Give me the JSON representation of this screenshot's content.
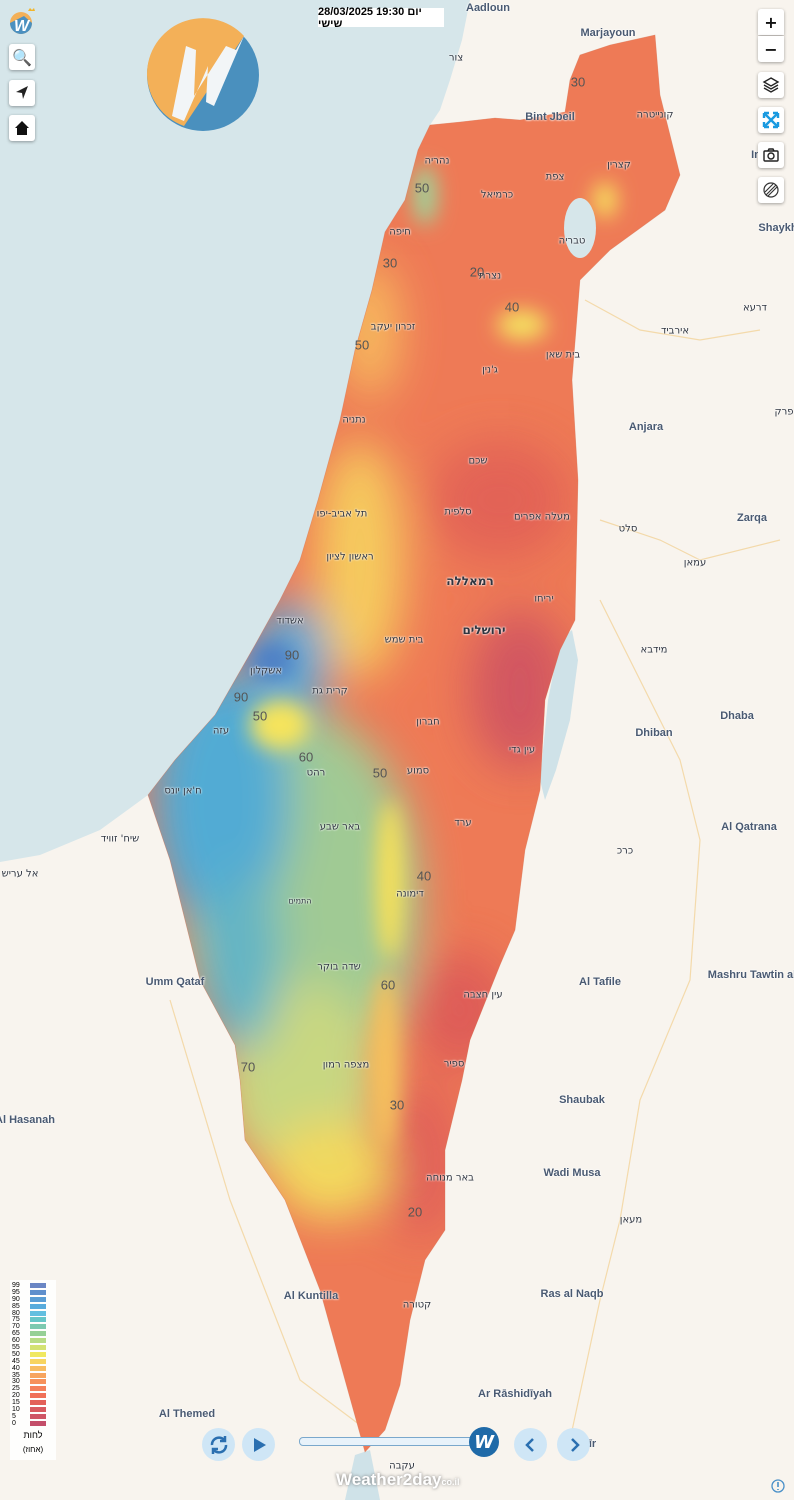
{
  "header": {
    "datetime": "28/03/2025 19:30 יום שישי"
  },
  "controls": {
    "zoom_in": "+",
    "zoom_out": "−",
    "icons": [
      "search-icon",
      "locate-arrow-icon",
      "home-icon",
      "layers-icon",
      "fullscreen-icon",
      "camera-icon",
      "radar-icon",
      "info-icon"
    ]
  },
  "overlay": {
    "variable": "relative-humidity",
    "colors": {
      "low": "#c8525e",
      "mid_low": "#ef7656",
      "mid": "#f6e05a",
      "mid_high": "#8fd0a0",
      "high": "#3fa8d8"
    }
  },
  "labels": [
    "נהריה",
    "כרמיאל",
    "צפת",
    "קצרין",
    "חיפה",
    "טבריה",
    "נצרת",
    "זכרון יעקב",
    "בית שאן",
    "ג'נין",
    "נתניה",
    "שכם",
    "תל אביב-יפו",
    "סלפית",
    "מעלה אפרים",
    "ראשון לציון",
    "רמאללה",
    "יריחו",
    "אשדוד",
    "בית שמש",
    "ירושלים",
    "אשקלון",
    "קרית גת",
    "עזה",
    "חברון",
    "עין גדי",
    "רהט",
    "סמוע",
    "ח'אן יונס",
    "באר שבע",
    "ערד",
    "שיח' זוויד",
    "אל עריש",
    "דימונה",
    "התמים",
    "שדה בוקר",
    "עין חצבה",
    "מצפה רמון",
    "ספיר",
    "באר מנוחה",
    "קטורה",
    "עקבה",
    "צור",
    "קונייטרה",
    "אירביד",
    "דרעא",
    "פרק",
    "סלט",
    "עמאן",
    "מידבא",
    "כרכ",
    "מעאן",
    "Aadloun",
    "Marjayoun",
    "Bint Jbeil",
    "In",
    "Shaykh",
    "Anjara",
    "Zarqa",
    "Dhaba",
    "Dhiban",
    "Al Qatrana",
    "Mashru Tawtin al",
    "Al Tafile",
    "Umm Qataf",
    "Al Hasanah",
    "Shaubak",
    "Wadi Musa",
    "Al Kuntilla",
    "Ras al Naqb",
    "Ar Rāshidīyah",
    "Al Themed",
    "ayshīr"
  ],
  "contours": [
    "30",
    "50",
    "30",
    "20",
    "40",
    "50",
    "90",
    "90",
    "50",
    "60",
    "50",
    "40",
    "60",
    "70",
    "30",
    "20"
  ],
  "legend": {
    "title": "לחות",
    "unit": "(אחוז)",
    "values": [
      "99",
      "95",
      "90",
      "85",
      "80",
      "75",
      "70",
      "65",
      "60",
      "55",
      "50",
      "45",
      "40",
      "35",
      "30",
      "25",
      "20",
      "15",
      "10",
      "5",
      "0"
    ],
    "colors": [
      "#6a86c4",
      "#5f8fcc",
      "#5a9dd4",
      "#58abdc",
      "#62bfe0",
      "#66c6c8",
      "#7cc9b0",
      "#96d096",
      "#b8dc86",
      "#d4e272",
      "#f0e860",
      "#f7d460",
      "#f8bc62",
      "#f7a45e",
      "#f6915a",
      "#f4805a",
      "#f07058",
      "#e36058",
      "#d85a60",
      "#cf5566",
      "#c44e6a"
    ]
  },
  "playback": {
    "brand": "Weather2day",
    "brand_suffix": "co.il"
  }
}
